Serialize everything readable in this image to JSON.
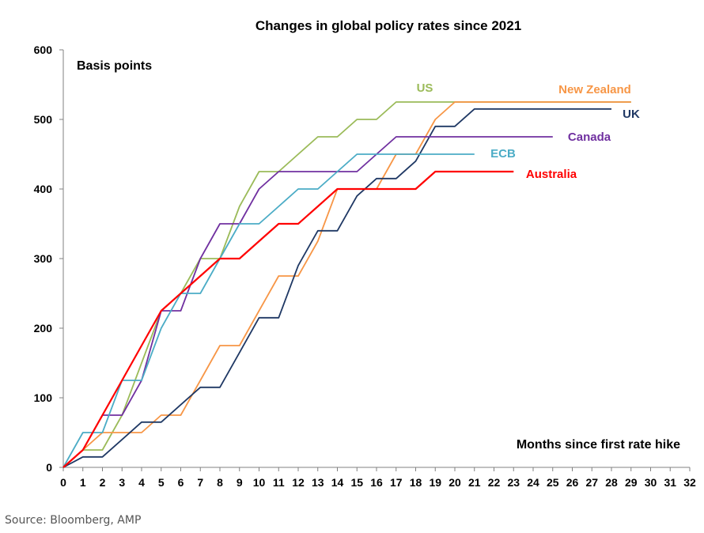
{
  "chart_data": {
    "type": "line",
    "title": "Changes in global policy rates since 2021",
    "ylabel": "Basis points",
    "xlabel": "Months since first rate hike",
    "ylim": [
      0,
      600
    ],
    "yticks": [
      0,
      100,
      200,
      300,
      400,
      500,
      600
    ],
    "xlim": [
      0,
      32
    ],
    "xticks": [
      0,
      1,
      2,
      3,
      4,
      5,
      6,
      7,
      8,
      9,
      10,
      11,
      12,
      13,
      14,
      15,
      16,
      17,
      18,
      19,
      20,
      21,
      22,
      23,
      24,
      25,
      26,
      27,
      28,
      29,
      30,
      31,
      32
    ],
    "grid": false,
    "series": [
      {
        "name": "US",
        "color": "#9BBB59",
        "label": "US",
        "x": [
          0,
          1,
          2,
          3,
          4,
          5,
          6,
          7,
          8,
          9,
          10,
          11,
          12,
          13,
          14,
          15,
          16,
          17,
          18,
          19,
          20,
          21,
          22,
          23,
          24,
          25,
          26,
          27,
          28,
          29
        ],
        "y": [
          0,
          25,
          25,
          75,
          150,
          225,
          250,
          300,
          300,
          375,
          425,
          425,
          450,
          475,
          475,
          500,
          500,
          525,
          525,
          525,
          525,
          525,
          525,
          525,
          525,
          525,
          525,
          525,
          525,
          525
        ]
      },
      {
        "name": "New Zealand",
        "color": "#F79646",
        "label": "New Zealand",
        "x": [
          0,
          1,
          2,
          3,
          4,
          5,
          6,
          7,
          8,
          9,
          10,
          11,
          12,
          13,
          14,
          15,
          16,
          17,
          18,
          19,
          20,
          21,
          22,
          23,
          24,
          25,
          26,
          27,
          28,
          29
        ],
        "y": [
          0,
          25,
          50,
          50,
          50,
          75,
          75,
          125,
          175,
          175,
          225,
          275,
          275,
          325,
          400,
          400,
          400,
          450,
          450,
          500,
          525,
          525,
          525,
          525,
          525,
          525,
          525,
          525,
          525,
          525
        ]
      },
      {
        "name": "UK",
        "color": "#1F3864",
        "label": "UK",
        "x": [
          0,
          1,
          2,
          3,
          4,
          5,
          6,
          7,
          8,
          9,
          10,
          11,
          12,
          13,
          14,
          15,
          16,
          17,
          18,
          19,
          20,
          21,
          22,
          23,
          24,
          25,
          26,
          27,
          28
        ],
        "y": [
          0,
          15,
          15,
          40,
          65,
          65,
          90,
          115,
          115,
          165,
          215,
          215,
          290,
          340,
          340,
          390,
          415,
          415,
          440,
          490,
          490,
          515,
          515,
          515,
          515,
          515,
          515,
          515,
          515
        ]
      },
      {
        "name": "Canada",
        "color": "#7030A0",
        "label": "Canada",
        "x": [
          0,
          1,
          2,
          3,
          4,
          5,
          6,
          7,
          8,
          9,
          10,
          11,
          12,
          13,
          14,
          15,
          16,
          17,
          18,
          19,
          20,
          21,
          22,
          23,
          24,
          25
        ],
        "y": [
          0,
          25,
          75,
          75,
          125,
          225,
          225,
          300,
          350,
          350,
          400,
          425,
          425,
          425,
          425,
          425,
          450,
          475,
          475,
          475,
          475,
          475,
          475,
          475,
          475,
          475
        ]
      },
      {
        "name": "ECB",
        "color": "#4BACC6",
        "label": "ECB",
        "x": [
          0,
          1,
          2,
          3,
          4,
          5,
          6,
          7,
          8,
          9,
          10,
          11,
          12,
          13,
          14,
          15,
          16,
          17,
          18,
          19,
          20,
          21
        ],
        "y": [
          0,
          50,
          50,
          125,
          125,
          200,
          250,
          250,
          300,
          350,
          350,
          375,
          400,
          400,
          425,
          450,
          450,
          450,
          450,
          450,
          450,
          450
        ]
      },
      {
        "name": "Australia",
        "color": "#FF0000",
        "label": "Australia",
        "x": [
          0,
          1,
          2,
          3,
          4,
          5,
          6,
          7,
          8,
          9,
          10,
          11,
          12,
          13,
          14,
          15,
          16,
          17,
          18,
          19,
          20,
          21,
          22,
          23
        ],
        "y": [
          0,
          25,
          75,
          125,
          175,
          225,
          250,
          275,
          300,
          300,
          325,
          350,
          350,
          375,
          400,
          400,
          400,
          400,
          400,
          425,
          425,
          425,
          425,
          425
        ]
      }
    ]
  },
  "source": "Source: Bloomberg, AMP"
}
